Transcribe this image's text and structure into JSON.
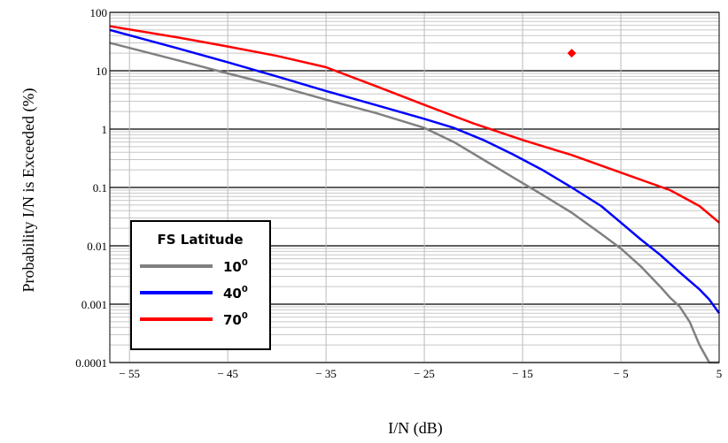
{
  "chart_data": {
    "type": "line",
    "title": "",
    "xlabel": "I/N (dB)",
    "ylabel": "Probability I/N is Exceeded (%)",
    "xlim": [
      -57,
      5
    ],
    "ylim": [
      0.0001,
      100
    ],
    "yscale": "log",
    "x_ticks": [
      -55,
      -45,
      -35,
      -25,
      -15,
      -5,
      5
    ],
    "x_tick_labels": [
      "− 55",
      "− 45",
      "− 35",
      "− 25",
      "− 15",
      "− 5",
      "5"
    ],
    "y_ticks": [
      0.0001,
      0.001,
      0.01,
      0.1,
      1,
      10,
      100
    ],
    "y_tick_labels": [
      "0.0001",
      "0.001",
      "0.01",
      "0.1",
      "1",
      "10",
      "100"
    ],
    "grid": true,
    "legend": {
      "title": "FS Latitude",
      "placement": "bottom-left"
    },
    "series": [
      {
        "name": "10",
        "name_sup": "0",
        "color": "#808080",
        "x": [
          -57,
          -50,
          -45,
          -40,
          -35,
          -30,
          -25,
          -22,
          -19,
          -16,
          -13,
          -10,
          -7,
          -5,
          -3,
          -1,
          0,
          1,
          2,
          3,
          4,
          5
        ],
        "y": [
          30,
          15,
          9,
          5.5,
          3.2,
          1.9,
          1.05,
          0.6,
          0.3,
          0.15,
          0.075,
          0.037,
          0.016,
          0.009,
          0.0045,
          0.002,
          0.0013,
          0.0009,
          0.0005,
          0.0002,
          0.0001,
          0.0001
        ]
      },
      {
        "name": "40",
        "name_sup": "0",
        "color": "#0000ff",
        "x": [
          -57,
          -50,
          -45,
          -40,
          -35,
          -30,
          -25,
          -22,
          -19,
          -16,
          -13,
          -10,
          -7,
          -5,
          -3,
          -1,
          1,
          2,
          3,
          4,
          5
        ],
        "y": [
          50,
          24,
          14,
          8,
          4.5,
          2.6,
          1.5,
          1.05,
          0.65,
          0.37,
          0.2,
          0.1,
          0.048,
          0.025,
          0.013,
          0.007,
          0.0035,
          0.0025,
          0.0018,
          0.0012,
          0.0007
        ]
      },
      {
        "name": "70",
        "name_sup": "0",
        "color": "#ff0000",
        "x": [
          -57,
          -50,
          -45,
          -40,
          -35,
          -30,
          -25,
          -20,
          -15,
          -10,
          -5,
          0,
          3,
          5
        ],
        "y": [
          58,
          37,
          26,
          18,
          11.5,
          5.5,
          2.6,
          1.25,
          0.65,
          0.36,
          0.18,
          0.09,
          0.048,
          0.025
        ]
      }
    ],
    "markers": [
      {
        "x": -10,
        "y": 20,
        "color": "#ff0000",
        "shape": "diamond"
      }
    ]
  }
}
